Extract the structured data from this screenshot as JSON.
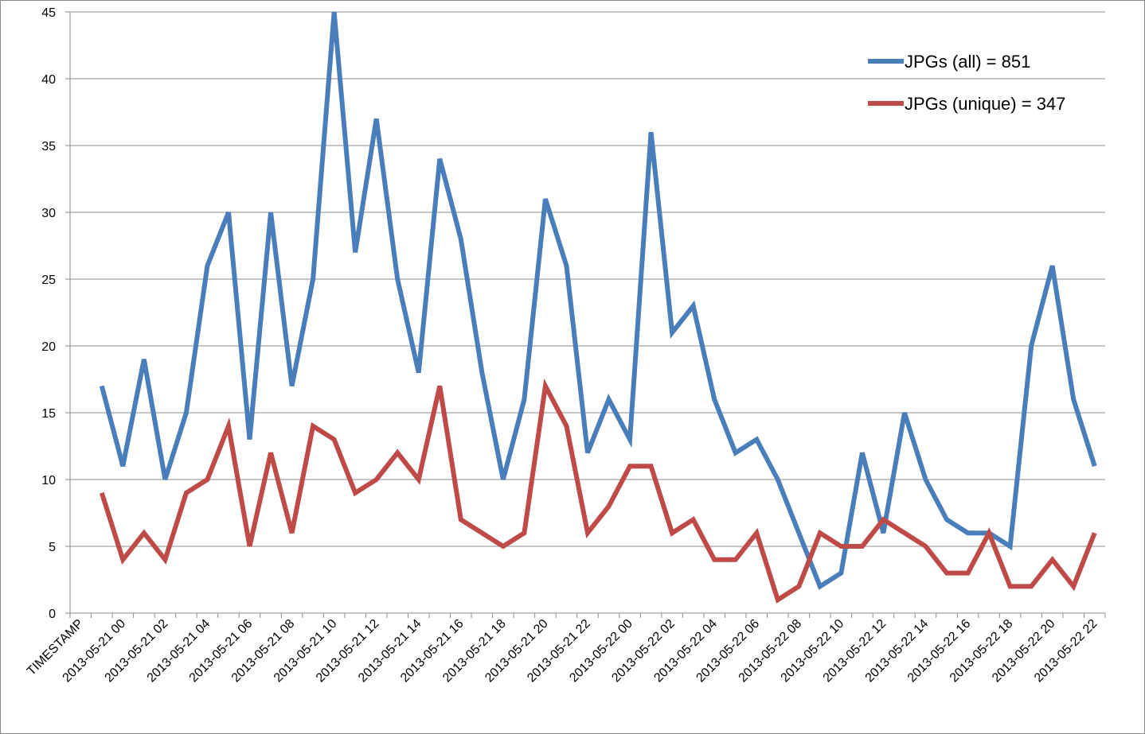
{
  "chart_data": {
    "type": "line",
    "categories": [
      "TIMESTAMP",
      null,
      "2013-05-21 00",
      null,
      "2013-05-21 02",
      null,
      "2013-05-21 04",
      null,
      "2013-05-21 06",
      null,
      "2013-05-21 08",
      null,
      "2013-05-21 10",
      null,
      "2013-05-21 12",
      null,
      "2013-05-21 14",
      null,
      "2013-05-21 16",
      null,
      "2013-05-21 18",
      null,
      "2013-05-21 20",
      null,
      "2013-05-21 22",
      null,
      "2013-05-22 00",
      null,
      "2013-05-22 02",
      null,
      "2013-05-22 04",
      null,
      "2013-05-22 06",
      null,
      "2013-05-22 08",
      null,
      "2013-05-22 10",
      null,
      "2013-05-22 12",
      null,
      "2013-05-22 14",
      null,
      "2013-05-22 16",
      null,
      "2013-05-22 18",
      null,
      "2013-05-22 20",
      null,
      "2013-05-22 22"
    ],
    "series": [
      {
        "name": "JPGs (all) = 851",
        "color": "#4a7ebb",
        "values": [
          null,
          17,
          11,
          19,
          10,
          15,
          26,
          30,
          13,
          30,
          17,
          25,
          45,
          27,
          37,
          25,
          18,
          34,
          28,
          18,
          10,
          16,
          31,
          26,
          12,
          16,
          13,
          36,
          21,
          23,
          16,
          12,
          13,
          10,
          6,
          2,
          3,
          12,
          6,
          15,
          10,
          7,
          6,
          6,
          5,
          20,
          26,
          16,
          11
        ]
      },
      {
        "name": "JPGs (unique) = 347",
        "color": "#be4b48",
        "values": [
          null,
          9,
          4,
          6,
          4,
          9,
          10,
          14,
          5,
          12,
          6,
          14,
          13,
          9,
          10,
          12,
          10,
          17,
          7,
          6,
          5,
          6,
          17,
          14,
          6,
          8,
          11,
          11,
          6,
          7,
          4,
          4,
          6,
          1,
          2,
          6,
          5,
          5,
          7,
          6,
          5,
          3,
          3,
          6,
          2,
          2,
          4,
          2,
          6
        ]
      }
    ],
    "ylim": [
      0,
      45
    ],
    "yticks": [
      0,
      5,
      10,
      15,
      20,
      25,
      30,
      35,
      40,
      45
    ],
    "grid": true,
    "legend": "top-right"
  }
}
